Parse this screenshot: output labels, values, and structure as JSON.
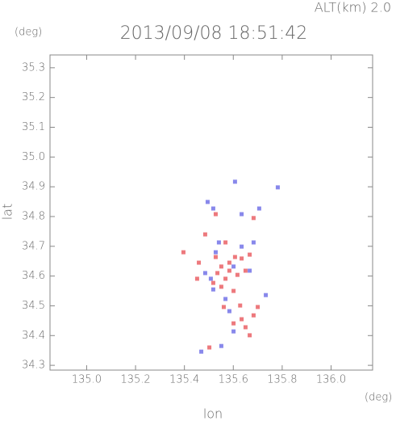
{
  "chart_data": {
    "type": "scatter",
    "header": "ALT(km) 2.0",
    "title": "2013/09/08 18:51:42",
    "y_unit": "(deg)",
    "x_unit": "(deg)",
    "xlabel": "lon",
    "ylabel": "lat",
    "xlim": [
      134.85,
      136.17
    ],
    "ylim": [
      34.284,
      35.343
    ],
    "xticks": [
      {
        "value": 135.0,
        "label": "135.0"
      },
      135.2,
      135.4,
      135.6,
      135.8,
      {
        "value": 136.0,
        "label": "136.0"
      }
    ],
    "yticks": [
      34.3,
      34.4,
      34.5,
      34.6,
      34.7,
      34.8,
      34.9,
      {
        "value": 35.0,
        "label": "35.0"
      },
      35.1,
      35.2,
      35.3
    ],
    "series": [
      {
        "color": "#e8585c",
        "x": [
          135.396,
          135.459,
          135.452,
          135.528,
          135.551,
          135.584,
          135.634,
          135.667,
          135.617,
          135.568,
          135.65,
          135.601,
          135.535,
          135.561,
          135.634,
          135.683,
          135.65,
          135.601,
          135.628,
          135.518,
          135.7,
          135.485,
          135.528,
          135.683,
          135.568,
          135.502,
          135.667,
          135.584,
          135.607,
          135.551
        ],
        "y": [
          34.68,
          34.645,
          34.591,
          34.664,
          34.632,
          34.645,
          34.659,
          34.672,
          34.604,
          34.591,
          34.618,
          34.55,
          34.61,
          34.496,
          34.455,
          34.468,
          34.428,
          34.441,
          34.501,
          34.577,
          34.496,
          34.74,
          34.808,
          34.795,
          34.713,
          34.36,
          34.401,
          34.618,
          34.664,
          34.564
        ]
      },
      {
        "color": "#6a6ae6",
        "x": [
          135.541,
          135.528,
          135.601,
          135.667,
          135.508,
          135.568,
          135.584,
          135.601,
          135.551,
          135.495,
          135.518,
          135.634,
          135.706,
          135.782,
          135.607,
          135.518,
          135.634,
          135.485,
          135.683,
          135.469,
          135.733
        ],
        "y": [
          34.713,
          34.68,
          34.632,
          34.618,
          34.591,
          34.523,
          34.482,
          34.414,
          34.365,
          34.849,
          34.827,
          34.808,
          34.827,
          34.898,
          34.917,
          34.555,
          34.699,
          34.61,
          34.713,
          34.346,
          34.536
        ]
      }
    ]
  }
}
